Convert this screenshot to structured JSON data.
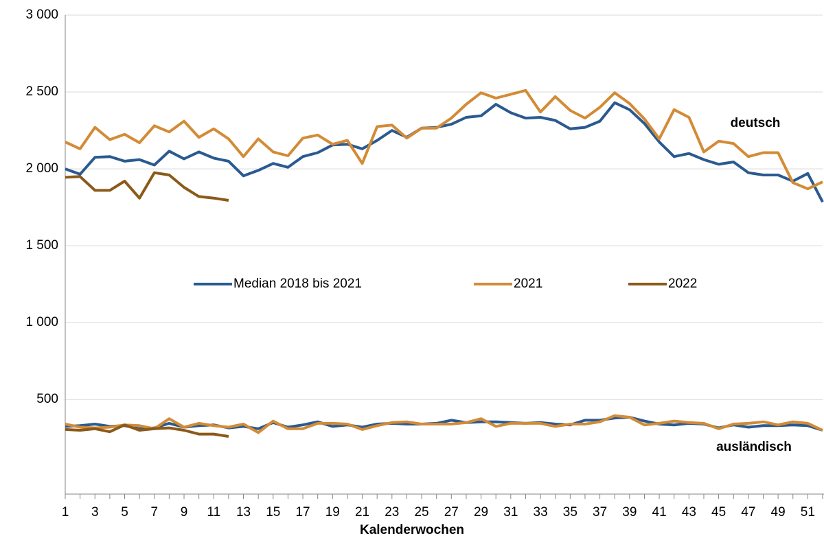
{
  "chart_data": {
    "type": "line",
    "x_label": "Kalenderwochen",
    "categories": [
      1,
      null,
      3,
      null,
      5,
      null,
      7,
      null,
      9,
      null,
      11,
      null,
      13,
      null,
      15,
      null,
      17,
      null,
      19,
      null,
      21,
      null,
      23,
      null,
      25,
      null,
      27,
      null,
      29,
      null,
      31,
      null,
      33,
      null,
      35,
      null,
      37,
      null,
      39,
      null,
      41,
      null,
      43,
      null,
      45,
      null,
      47,
      null,
      49,
      null,
      51,
      null
    ],
    "ylim": [
      -115,
      3000
    ],
    "yticks": [
      500,
      {
        "value": 1000,
        "label": "1 000"
      },
      {
        "value": 1500,
        "label": "1 500"
      },
      {
        "value": 2000,
        "label": "2 000"
      },
      {
        "value": 2500,
        "label": "2 500"
      },
      {
        "value": 3000,
        "label": "3 000"
      }
    ],
    "grid": true,
    "legend": "center",
    "series": [
      {
        "name": "Median 2018 bis 2021",
        "color": "#2a5a90"
      },
      {
        "name": "2021",
        "color": "#d38b36"
      },
      {
        "name": "2022",
        "color": "#8b5a1a"
      }
    ],
    "groups": [
      {
        "label": "deutsch",
        "values": [
          [
            2000,
            1965,
            2075,
            2080,
            2050,
            2060,
            2025,
            2115,
            2065,
            2110,
            2070,
            2050,
            1955,
            1990,
            2035,
            2010,
            2080,
            2105,
            2155,
            2160,
            2130,
            2185,
            2250,
            2205,
            2265,
            2270,
            2290,
            2335,
            2345,
            2420,
            2365,
            2330,
            2335,
            2315,
            2260,
            2270,
            2310,
            2430,
            2385,
            2295,
            2175,
            2080,
            2100,
            2060,
            2030,
            2045,
            1975,
            1960,
            1960,
            1920,
            1970,
            1785
          ],
          [
            2175,
            2130,
            2270,
            2190,
            2225,
            2170,
            2280,
            2240,
            2310,
            2205,
            2260,
            2195,
            2080,
            2195,
            2110,
            2085,
            2200,
            2220,
            2160,
            2185,
            2035,
            2275,
            2285,
            2200,
            2265,
            2265,
            2330,
            2420,
            2495,
            2460,
            2485,
            2510,
            2370,
            2470,
            2380,
            2330,
            2400,
            2495,
            2425,
            2325,
            2195,
            2385,
            2335,
            2110,
            2180,
            2165,
            2080,
            2105,
            2105,
            1910,
            1870,
            1915
          ],
          [
            1945,
            1950,
            1860,
            1860,
            1920,
            1810,
            1975,
            1960,
            1880,
            1820,
            1810,
            1795,
            null,
            null,
            null,
            null,
            null,
            null,
            null,
            null,
            null,
            null,
            null,
            null,
            null,
            null,
            null,
            null,
            null,
            null,
            null,
            null,
            null,
            null,
            null,
            null,
            null,
            null,
            null,
            null,
            null,
            null,
            null,
            null,
            null,
            null,
            null,
            null,
            null,
            null,
            null,
            null
          ]
        ]
      },
      {
        "label": "ausländisch",
        "values": [
          [
            325,
            330,
            340,
            325,
            330,
            310,
            315,
            345,
            320,
            330,
            335,
            315,
            325,
            310,
            350,
            320,
            335,
            355,
            325,
            335,
            320,
            340,
            345,
            340,
            340,
            345,
            365,
            350,
            355,
            355,
            350,
            345,
            350,
            340,
            335,
            365,
            365,
            380,
            385,
            360,
            340,
            335,
            345,
            340,
            315,
            335,
            320,
            330,
            330,
            335,
            330,
            300
          ],
          [
            340,
            320,
            315,
            320,
            335,
            330,
            310,
            375,
            320,
            345,
            330,
            320,
            340,
            285,
            360,
            310,
            310,
            345,
            345,
            340,
            305,
            330,
            350,
            355,
            340,
            340,
            340,
            350,
            375,
            325,
            345,
            345,
            345,
            325,
            340,
            340,
            355,
            395,
            385,
            335,
            345,
            360,
            350,
            345,
            310,
            340,
            345,
            355,
            335,
            355,
            345,
            300
          ],
          [
            305,
            300,
            310,
            290,
            335,
            300,
            310,
            315,
            300,
            275,
            275,
            260,
            null,
            null,
            null,
            null,
            null,
            null,
            null,
            null,
            null,
            null,
            null,
            null,
            null,
            null,
            null,
            null,
            null,
            null,
            null,
            null,
            null,
            null,
            null,
            null,
            null,
            null,
            null,
            null,
            null,
            null,
            null,
            null,
            null,
            null,
            null,
            null,
            null,
            null,
            null,
            null
          ]
        ]
      }
    ]
  }
}
